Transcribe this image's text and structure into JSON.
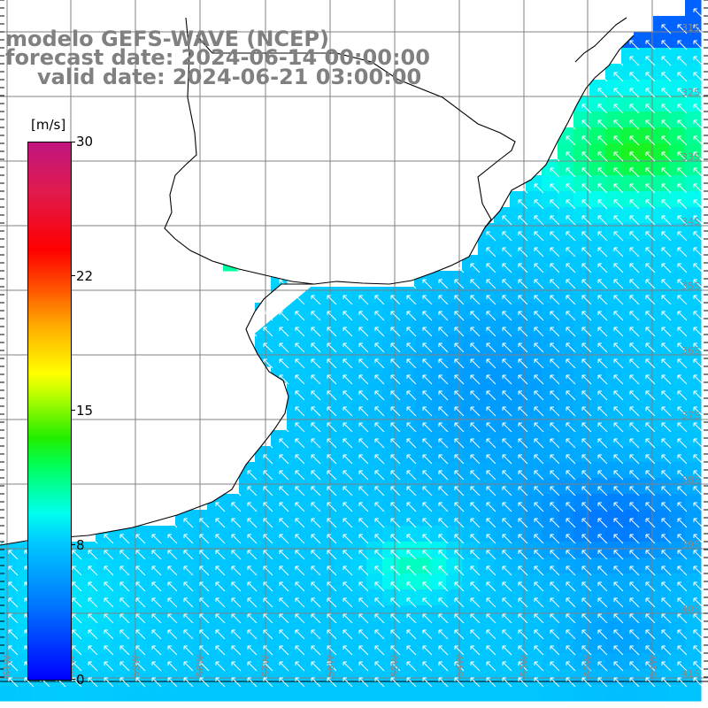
{
  "title": {
    "line1": "modelo GEFS-WAVE (NCEP)",
    "line2": "forecast date: 2024-06-14 00:00:00",
    "line3": "valid date: 2024-06-21 03:00:00"
  },
  "colorbar": {
    "unit": "[m/s]",
    "ticks": [
      "30",
      "22",
      "15",
      "8",
      "0"
    ],
    "tick_values": [
      30,
      22,
      15,
      8,
      0
    ],
    "min": 0,
    "max": 30,
    "colors": [
      "#0000ff",
      "#00ccff",
      "#00ffee",
      "#00ff55",
      "#ffff00",
      "#ff0000",
      "#c0157f"
    ]
  },
  "latitude_labels": [
    "31S",
    "32S",
    "33S",
    "34S",
    "35S",
    "36S",
    "37S",
    "38S",
    "39S",
    "40S",
    "41S"
  ],
  "longitude_labels": [
    "61W",
    "60W",
    "59W",
    "58W",
    "57W",
    "56W",
    "55W",
    "54W",
    "53W",
    "52W",
    "51W"
  ],
  "colors": {
    "title": "#808080",
    "land": "#ffffff",
    "coastline": "#000000",
    "grid": "#808080",
    "arrows": "#ffffff"
  },
  "field": {
    "description_free": true,
    "wind_direction": "from south-east (arrows point north-west)",
    "speed_range_ms": [
      3,
      11
    ]
  }
}
